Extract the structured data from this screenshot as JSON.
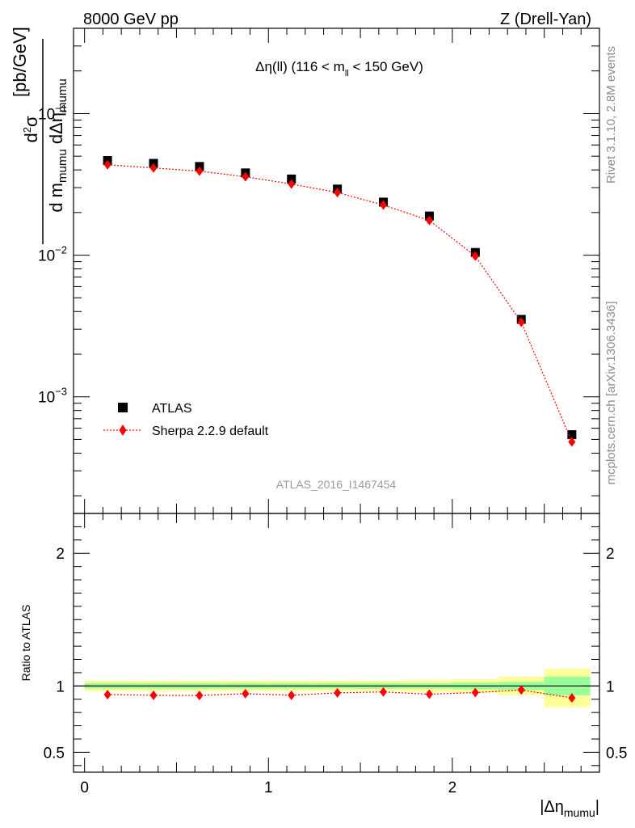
{
  "header": {
    "left": "8000 GeV pp",
    "right": "Z (Drell-Yan)"
  },
  "side_labels": {
    "rivet": "Rivet 3.1.10,  2.8M events",
    "mcplots": "mcplots.cern.ch [arXiv:1306.3436]"
  },
  "chart_data": [
    {
      "type": "scatter",
      "panel": "main",
      "title": "Δη(ll) (116 < m_ll < 150 GeV)",
      "title_parts": {
        "main": "Δη(ll) (116 < m",
        "sub": "ll",
        "tail": " < 150 GeV)"
      },
      "watermark": "ATLAS_2016_I1467454",
      "ylabel": {
        "num_d": "d",
        "num_sup": "2",
        "num_sigma": "σ",
        "den": "d m",
        "den_sub": "mumu",
        "den_mid": " dΔη",
        "den_sub2": "mumu",
        "unit": "[pb/GeV]"
      },
      "yscale": "log",
      "ylim": [
        0.00015,
        0.4
      ],
      "xlim": [
        -0.06,
        2.8
      ],
      "ytick_labels": [
        {
          "base": "10",
          "exp": "−1",
          "value": 0.1
        },
        {
          "base": "10",
          "exp": "−2",
          "value": 0.01
        },
        {
          "base": "10",
          "exp": "−3",
          "value": 0.001
        }
      ],
      "x_edges": [
        0,
        0.25,
        0.5,
        0.75,
        1.0,
        1.25,
        1.5,
        1.75,
        2.0,
        2.25,
        2.5,
        2.8
      ],
      "x": [
        0.125,
        0.375,
        0.625,
        0.875,
        1.125,
        1.375,
        1.625,
        1.875,
        2.125,
        2.375,
        2.65
      ],
      "series": [
        {
          "name": "ATLAS",
          "marker": "square",
          "color": "#000000",
          "values": [
            0.0466,
            0.0445,
            0.0423,
            0.0381,
            0.0345,
            0.0293,
            0.0237,
            0.0189,
            0.01045,
            0.00352,
            0.00054
          ]
        },
        {
          "name": "Sherpa 2.2.9 default",
          "marker": "diamond",
          "color": "#ff0000",
          "line": "dotted",
          "values": [
            0.0435,
            0.0413,
            0.0392,
            0.0358,
            0.0318,
            0.0277,
            0.0226,
            0.0176,
            0.00985,
            0.00336,
            0.00048
          ]
        }
      ],
      "legend": {
        "position": "lower-left"
      }
    },
    {
      "type": "scatter",
      "panel": "ratio",
      "ylabel": "Ratio to ATLAS",
      "xlabel": {
        "main": "|Δη",
        "sub": "mumu",
        "tail": "|"
      },
      "ylim": [
        0.35,
        2.3
      ],
      "xlim": [
        -0.06,
        2.8
      ],
      "yticks": [
        0.5,
        1,
        2
      ],
      "ytick_labels": [
        "0.5",
        "1",
        "2"
      ],
      "xticks": [
        0,
        1,
        2
      ],
      "xtick_labels": [
        "0",
        "1",
        "2"
      ],
      "band_colors": {
        "stat": "#99ff99",
        "total": "#ffff99"
      },
      "bands": [
        {
          "x0": 0.0,
          "x1": 0.25,
          "inner": [
            0.98,
            1.02
          ],
          "outer": [
            0.96,
            1.04
          ]
        },
        {
          "x0": 0.25,
          "x1": 0.5,
          "inner": [
            0.98,
            1.02
          ],
          "outer": [
            0.96,
            1.04
          ]
        },
        {
          "x0": 0.5,
          "x1": 0.75,
          "inner": [
            0.98,
            1.02
          ],
          "outer": [
            0.96,
            1.04
          ]
        },
        {
          "x0": 0.75,
          "x1": 1.0,
          "inner": [
            0.98,
            1.02
          ],
          "outer": [
            0.96,
            1.04
          ]
        },
        {
          "x0": 1.0,
          "x1": 1.25,
          "inner": [
            0.98,
            1.02
          ],
          "outer": [
            0.96,
            1.04
          ]
        },
        {
          "x0": 1.25,
          "x1": 1.5,
          "inner": [
            0.98,
            1.02
          ],
          "outer": [
            0.96,
            1.04
          ]
        },
        {
          "x0": 1.5,
          "x1": 1.75,
          "inner": [
            0.98,
            1.02
          ],
          "outer": [
            0.96,
            1.04
          ]
        },
        {
          "x0": 1.75,
          "x1": 2.0,
          "inner": [
            0.98,
            1.02
          ],
          "outer": [
            0.955,
            1.045
          ]
        },
        {
          "x0": 2.0,
          "x1": 2.25,
          "inner": [
            0.975,
            1.025
          ],
          "outer": [
            0.95,
            1.05
          ]
        },
        {
          "x0": 2.25,
          "x1": 2.5,
          "inner": [
            0.97,
            1.03
          ],
          "outer": [
            0.93,
            1.07
          ]
        },
        {
          "x0": 2.5,
          "x1": 2.75,
          "inner": [
            0.93,
            1.07
          ],
          "outer": [
            0.84,
            1.13
          ]
        }
      ],
      "x": [
        0.125,
        0.375,
        0.625,
        0.875,
        1.125,
        1.375,
        1.625,
        1.875,
        2.125,
        2.375,
        2.65
      ],
      "series": [
        {
          "name": "Sherpa 2.2.9 default",
          "color": "#ff0000",
          "values": [
            0.935,
            0.93,
            0.928,
            0.942,
            0.93,
            0.948,
            0.955,
            0.938,
            0.95,
            0.97,
            0.91
          ],
          "errors": [
            0.005,
            0.005,
            0.005,
            0.005,
            0.005,
            0.005,
            0.005,
            0.005,
            0.006,
            0.01,
            0.03
          ]
        }
      ]
    }
  ]
}
